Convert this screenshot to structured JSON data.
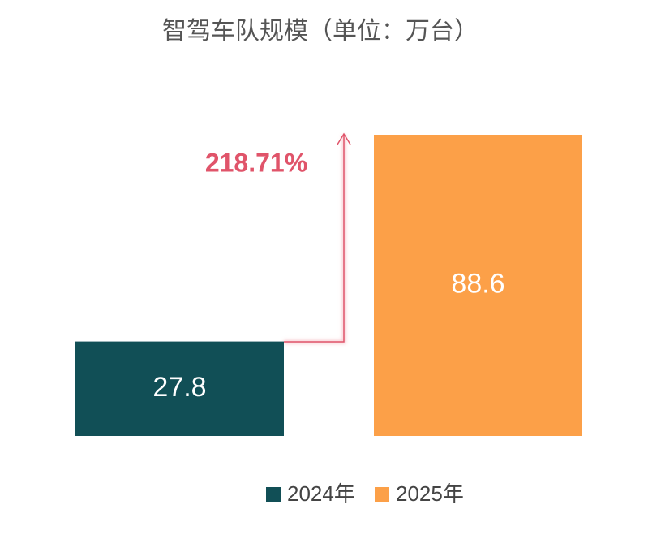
{
  "chart_data": {
    "type": "bar",
    "title": "智驾车队规模（单位：万台）",
    "series": [
      {
        "name": "2024年",
        "color": "#114f56",
        "values": [
          27.8
        ]
      },
      {
        "name": "2025年",
        "color": "#fca048",
        "values": [
          88.6
        ]
      }
    ],
    "annotation": "218.71%",
    "annotation_color": "#e0546a"
  }
}
